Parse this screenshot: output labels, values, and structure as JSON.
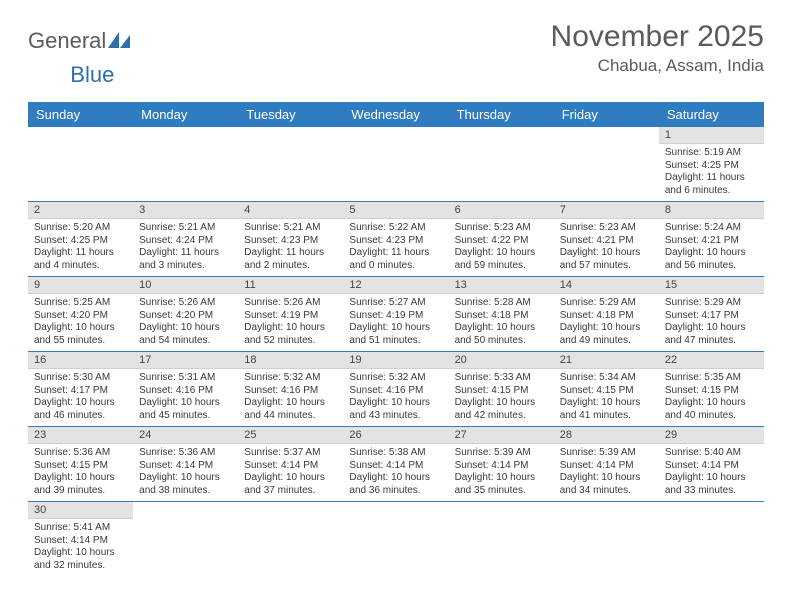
{
  "logo": {
    "text1": "General",
    "text2": "Blue"
  },
  "title": "November 2025",
  "location": "Chabua, Assam, India",
  "daynames": [
    "Sunday",
    "Monday",
    "Tuesday",
    "Wednesday",
    "Thursday",
    "Friday",
    "Saturday"
  ],
  "colors": {
    "header_bg": "#2f7dc0",
    "header_text": "#ffffff",
    "daynum_bg": "#e3e3e3",
    "cell_border": "#2f7dc0",
    "title_color": "#5b5b5b"
  },
  "weeks": [
    [
      null,
      null,
      null,
      null,
      null,
      null,
      {
        "n": "1",
        "sr": "Sunrise: 5:19 AM",
        "ss": "Sunset: 4:25 PM",
        "dl": "Daylight: 11 hours and 6 minutes."
      }
    ],
    [
      {
        "n": "2",
        "sr": "Sunrise: 5:20 AM",
        "ss": "Sunset: 4:25 PM",
        "dl": "Daylight: 11 hours and 4 minutes."
      },
      {
        "n": "3",
        "sr": "Sunrise: 5:21 AM",
        "ss": "Sunset: 4:24 PM",
        "dl": "Daylight: 11 hours and 3 minutes."
      },
      {
        "n": "4",
        "sr": "Sunrise: 5:21 AM",
        "ss": "Sunset: 4:23 PM",
        "dl": "Daylight: 11 hours and 2 minutes."
      },
      {
        "n": "5",
        "sr": "Sunrise: 5:22 AM",
        "ss": "Sunset: 4:23 PM",
        "dl": "Daylight: 11 hours and 0 minutes."
      },
      {
        "n": "6",
        "sr": "Sunrise: 5:23 AM",
        "ss": "Sunset: 4:22 PM",
        "dl": "Daylight: 10 hours and 59 minutes."
      },
      {
        "n": "7",
        "sr": "Sunrise: 5:23 AM",
        "ss": "Sunset: 4:21 PM",
        "dl": "Daylight: 10 hours and 57 minutes."
      },
      {
        "n": "8",
        "sr": "Sunrise: 5:24 AM",
        "ss": "Sunset: 4:21 PM",
        "dl": "Daylight: 10 hours and 56 minutes."
      }
    ],
    [
      {
        "n": "9",
        "sr": "Sunrise: 5:25 AM",
        "ss": "Sunset: 4:20 PM",
        "dl": "Daylight: 10 hours and 55 minutes."
      },
      {
        "n": "10",
        "sr": "Sunrise: 5:26 AM",
        "ss": "Sunset: 4:20 PM",
        "dl": "Daylight: 10 hours and 54 minutes."
      },
      {
        "n": "11",
        "sr": "Sunrise: 5:26 AM",
        "ss": "Sunset: 4:19 PM",
        "dl": "Daylight: 10 hours and 52 minutes."
      },
      {
        "n": "12",
        "sr": "Sunrise: 5:27 AM",
        "ss": "Sunset: 4:19 PM",
        "dl": "Daylight: 10 hours and 51 minutes."
      },
      {
        "n": "13",
        "sr": "Sunrise: 5:28 AM",
        "ss": "Sunset: 4:18 PM",
        "dl": "Daylight: 10 hours and 50 minutes."
      },
      {
        "n": "14",
        "sr": "Sunrise: 5:29 AM",
        "ss": "Sunset: 4:18 PM",
        "dl": "Daylight: 10 hours and 49 minutes."
      },
      {
        "n": "15",
        "sr": "Sunrise: 5:29 AM",
        "ss": "Sunset: 4:17 PM",
        "dl": "Daylight: 10 hours and 47 minutes."
      }
    ],
    [
      {
        "n": "16",
        "sr": "Sunrise: 5:30 AM",
        "ss": "Sunset: 4:17 PM",
        "dl": "Daylight: 10 hours and 46 minutes."
      },
      {
        "n": "17",
        "sr": "Sunrise: 5:31 AM",
        "ss": "Sunset: 4:16 PM",
        "dl": "Daylight: 10 hours and 45 minutes."
      },
      {
        "n": "18",
        "sr": "Sunrise: 5:32 AM",
        "ss": "Sunset: 4:16 PM",
        "dl": "Daylight: 10 hours and 44 minutes."
      },
      {
        "n": "19",
        "sr": "Sunrise: 5:32 AM",
        "ss": "Sunset: 4:16 PM",
        "dl": "Daylight: 10 hours and 43 minutes."
      },
      {
        "n": "20",
        "sr": "Sunrise: 5:33 AM",
        "ss": "Sunset: 4:15 PM",
        "dl": "Daylight: 10 hours and 42 minutes."
      },
      {
        "n": "21",
        "sr": "Sunrise: 5:34 AM",
        "ss": "Sunset: 4:15 PM",
        "dl": "Daylight: 10 hours and 41 minutes."
      },
      {
        "n": "22",
        "sr": "Sunrise: 5:35 AM",
        "ss": "Sunset: 4:15 PM",
        "dl": "Daylight: 10 hours and 40 minutes."
      }
    ],
    [
      {
        "n": "23",
        "sr": "Sunrise: 5:36 AM",
        "ss": "Sunset: 4:15 PM",
        "dl": "Daylight: 10 hours and 39 minutes."
      },
      {
        "n": "24",
        "sr": "Sunrise: 5:36 AM",
        "ss": "Sunset: 4:14 PM",
        "dl": "Daylight: 10 hours and 38 minutes."
      },
      {
        "n": "25",
        "sr": "Sunrise: 5:37 AM",
        "ss": "Sunset: 4:14 PM",
        "dl": "Daylight: 10 hours and 37 minutes."
      },
      {
        "n": "26",
        "sr": "Sunrise: 5:38 AM",
        "ss": "Sunset: 4:14 PM",
        "dl": "Daylight: 10 hours and 36 minutes."
      },
      {
        "n": "27",
        "sr": "Sunrise: 5:39 AM",
        "ss": "Sunset: 4:14 PM",
        "dl": "Daylight: 10 hours and 35 minutes."
      },
      {
        "n": "28",
        "sr": "Sunrise: 5:39 AM",
        "ss": "Sunset: 4:14 PM",
        "dl": "Daylight: 10 hours and 34 minutes."
      },
      {
        "n": "29",
        "sr": "Sunrise: 5:40 AM",
        "ss": "Sunset: 4:14 PM",
        "dl": "Daylight: 10 hours and 33 minutes."
      }
    ],
    [
      {
        "n": "30",
        "sr": "Sunrise: 5:41 AM",
        "ss": "Sunset: 4:14 PM",
        "dl": "Daylight: 10 hours and 32 minutes."
      },
      null,
      null,
      null,
      null,
      null,
      null
    ]
  ]
}
